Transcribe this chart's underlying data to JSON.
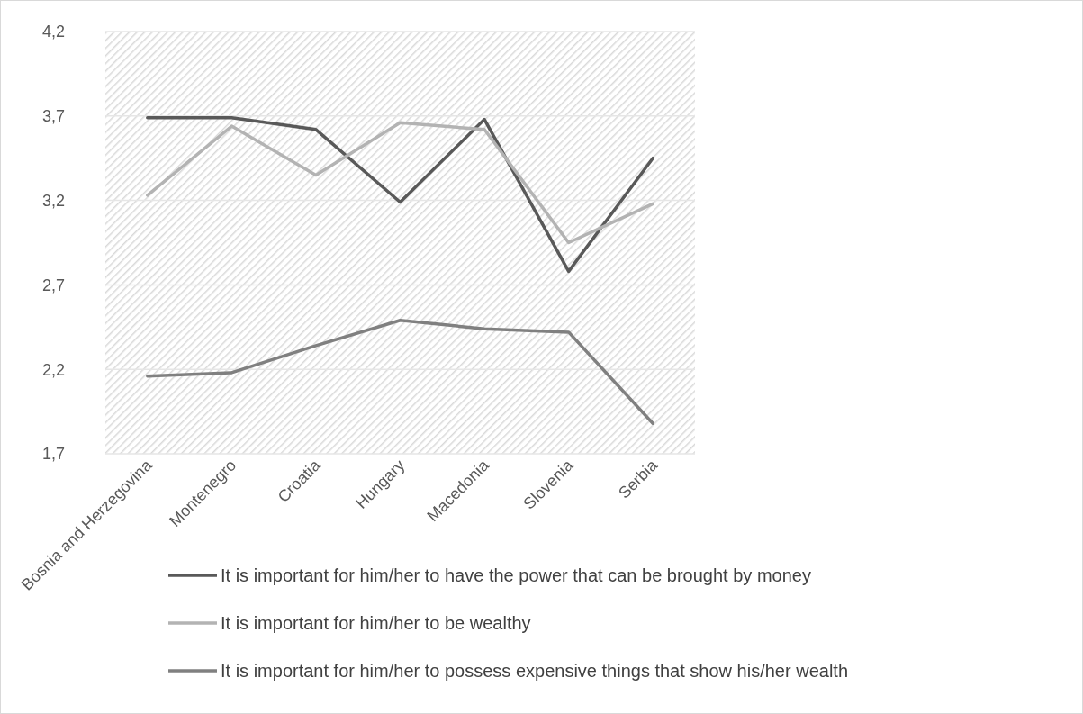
{
  "chart_data": {
    "type": "line",
    "categories": [
      "Bosnia and Herzegovina",
      "Montenegro",
      "Croatia",
      "Hungary",
      "Macedonia",
      "Slovenia",
      "Serbia"
    ],
    "series": [
      {
        "name": "It is important for him/her to have the power that can be brought by money",
        "color": "#595959",
        "values": [
          3.69,
          3.69,
          3.62,
          3.19,
          3.68,
          2.78,
          3.45
        ]
      },
      {
        "name": "It is important for him/her to be wealthy",
        "color": "#b3b3b3",
        "values": [
          3.23,
          3.64,
          3.35,
          3.66,
          3.62,
          2.95,
          3.18
        ]
      },
      {
        "name": "It is important for him/her to possess expensive things that show his/her wealth",
        "color": "#808080",
        "values": [
          2.16,
          2.18,
          2.34,
          2.49,
          2.44,
          2.42,
          1.88
        ]
      }
    ],
    "ylim": [
      1.7,
      4.2
    ],
    "yticks": [
      {
        "value": 1.7,
        "label": "1,7"
      },
      {
        "value": 2.2,
        "label": "2,2"
      },
      {
        "value": 2.7,
        "label": "2,7"
      },
      {
        "value": 3.2,
        "label": "3,2"
      },
      {
        "value": 3.7,
        "label": "3,7"
      },
      {
        "value": 4.2,
        "label": "4,2"
      }
    ],
    "grid": "y",
    "legend": "bottom",
    "marker": "none",
    "line_style": "solid"
  }
}
